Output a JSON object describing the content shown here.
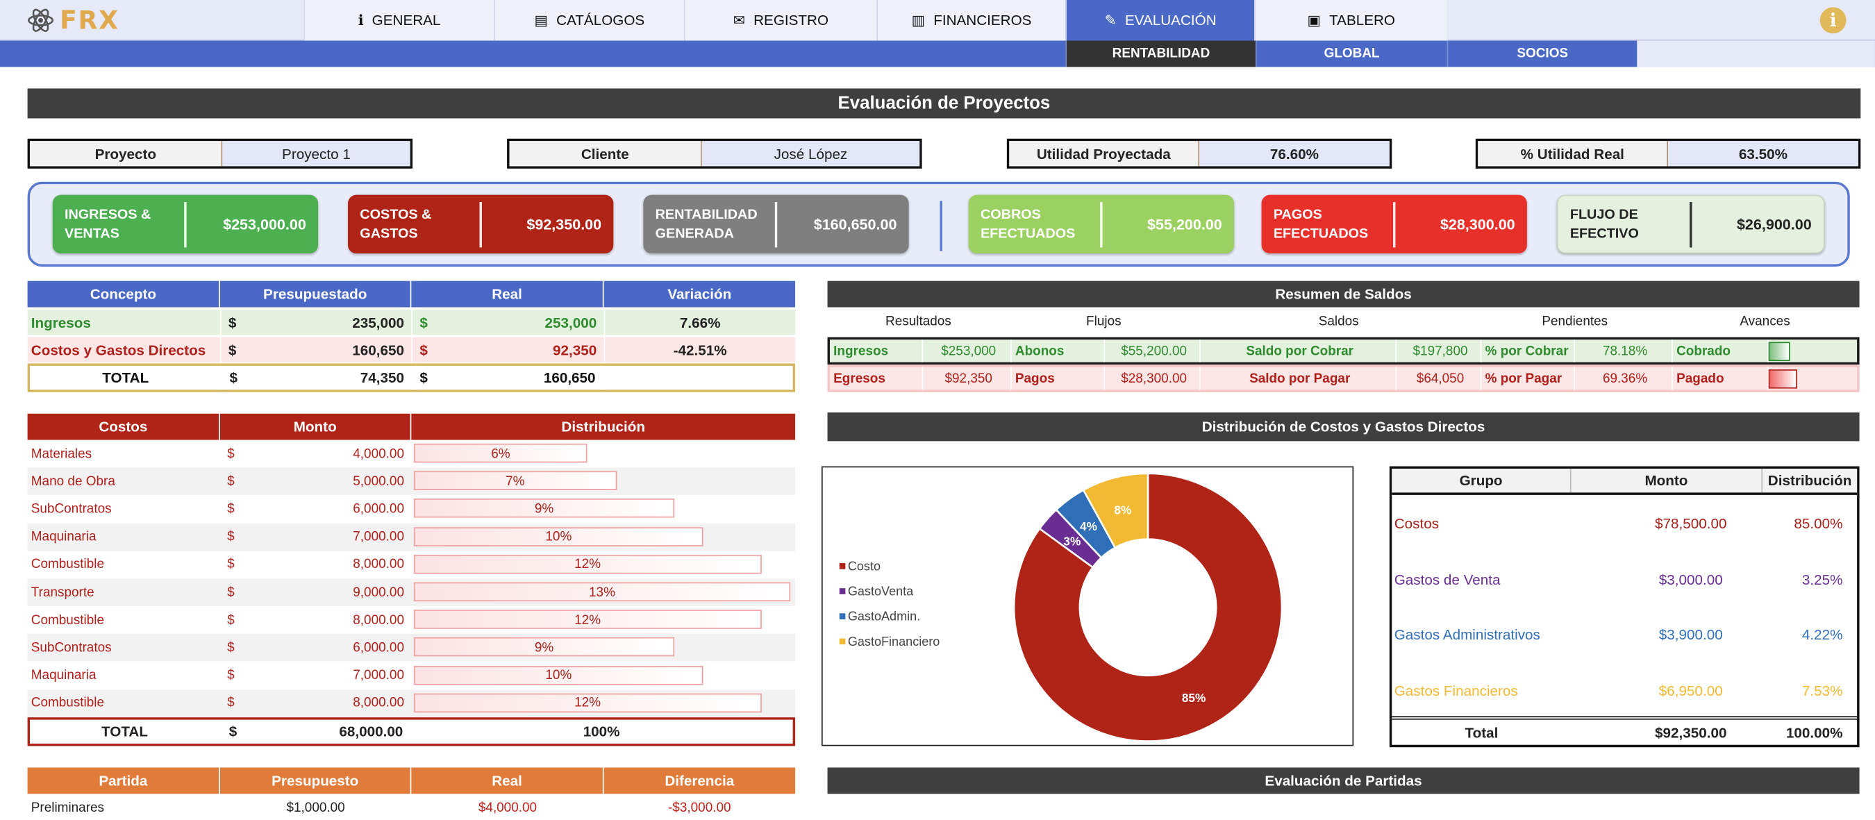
{
  "app": {
    "logo": "FRX"
  },
  "nav": {
    "tabs": [
      {
        "label": "GENERAL",
        "icon": "info-icon"
      },
      {
        "label": "CATÁLOGOS",
        "icon": "book-icon"
      },
      {
        "label": "REGISTRO",
        "icon": "folder-icon"
      },
      {
        "label": "FINANCIEROS",
        "icon": "bar-chart-icon"
      },
      {
        "label": "EVALUACIÓN",
        "icon": "chart-icon",
        "active": true
      },
      {
        "label": "TABLERO",
        "icon": "box-icon"
      }
    ],
    "subtabs": [
      {
        "label": "RENTABILIDAD",
        "active": true
      },
      {
        "label": "GLOBAL"
      },
      {
        "label": "SOCIOS"
      }
    ]
  },
  "title": "Evaluación de Proyectos",
  "params": {
    "proyecto_label": "Proyecto",
    "proyecto_value": "Proyecto 1",
    "cliente_label": "Cliente",
    "cliente_value": "José López",
    "utilidad_label": "Utilidad Proyectada",
    "utilidad_value": "76.60%",
    "real_label": "% Utilidad Real",
    "real_value": "63.50%"
  },
  "kpis": [
    {
      "label": "INGRESOS & VENTAS",
      "value": "$253,000.00",
      "color": "#4caf50"
    },
    {
      "label": "COSTOS & GASTOS",
      "value": "$92,350.00",
      "color": "#b02418"
    },
    {
      "label": "RENTABILIDAD GENERADA",
      "value": "$160,650.00",
      "color": "#7f7f7f"
    },
    {
      "label": "COBROS EFECTUADOS",
      "value": "$55,200.00",
      "color": "#9bd160"
    },
    {
      "label": "PAGOS EFECTUADOS",
      "value": "$28,300.00",
      "color": "#e8302a"
    },
    {
      "label": "FLUJO DE EFECTIVO",
      "value": "$26,900.00",
      "color": "#e6f0df"
    }
  ],
  "concepto": {
    "headers": [
      "Concepto",
      "Presupuestado",
      "Real",
      "Variación"
    ],
    "rows": [
      {
        "label": "Ingresos",
        "pres": "235,000",
        "real": "253,000",
        "var": "7.66%"
      },
      {
        "label": "Costos y Gastos Directos",
        "pres": "160,650",
        "real": "92,350",
        "var": "-42.51%"
      },
      {
        "label": "TOTAL",
        "pres": "74,350",
        "real": "160,650",
        "var": ""
      }
    ],
    "currency": "$"
  },
  "costos": {
    "headers": [
      "Costos",
      "Monto",
      "Distribución"
    ],
    "rows": [
      {
        "label": "Materiales",
        "monto": "4,000.00",
        "pct": "6%",
        "value": 6
      },
      {
        "label": "Mano de Obra",
        "monto": "5,000.00",
        "pct": "7%",
        "value": 7
      },
      {
        "label": "SubContratos",
        "monto": "6,000.00",
        "pct": "9%",
        "value": 9
      },
      {
        "label": "Maquinaria",
        "monto": "7,000.00",
        "pct": "10%",
        "value": 10
      },
      {
        "label": "Combustible",
        "monto": "8,000.00",
        "pct": "12%",
        "value": 12
      },
      {
        "label": "Transporte",
        "monto": "9,000.00",
        "pct": "13%",
        "value": 13
      },
      {
        "label": "Combustible",
        "monto": "8,000.00",
        "pct": "12%",
        "value": 12
      },
      {
        "label": "SubContratos",
        "monto": "6,000.00",
        "pct": "9%",
        "value": 9
      },
      {
        "label": "Maquinaria",
        "monto": "7,000.00",
        "pct": "10%",
        "value": 10
      },
      {
        "label": "Combustible",
        "monto": "8,000.00",
        "pct": "12%",
        "value": 12
      }
    ],
    "total_label": "TOTAL",
    "total_monto": "68,000.00",
    "total_pct": "100%",
    "currency": "$"
  },
  "partida": {
    "headers": [
      "Partida",
      "Presupuesto",
      "Real",
      "Diferencia"
    ],
    "row": {
      "label": "Preliminares",
      "pres": "$1,000.00",
      "real": "$4,000.00",
      "dif": "-$3,000.00"
    }
  },
  "resumen": {
    "title": "Resumen de Saldos",
    "headers": [
      "Resultados",
      "Flujos",
      "Saldos",
      "Pendientes",
      "Avances"
    ],
    "rows": [
      {
        "a": "Ingresos",
        "b": "$253,000",
        "c": "Abonos",
        "d": "$55,200.00",
        "e": "Saldo por Cobrar",
        "f": "$197,800",
        "g": "% por Cobrar",
        "h": "78.18%",
        "i": "Cobrado",
        "color": "#2e8b2e",
        "bg": "#e4f1de"
      },
      {
        "a": "Egresos",
        "b": "$92,350",
        "c": "Pagos",
        "d": "$28,300.00",
        "e": "Saldo por Pagar",
        "f": "$64,050",
        "g": "% por Pagar",
        "h": "69.36%",
        "i": "Pagado",
        "color": "#b0201a",
        "bg": "#fde6e6"
      }
    ]
  },
  "dist_title": "Distribución de Costos y Gastos Directos",
  "chart_data": {
    "type": "pie",
    "categories": [
      "Costo",
      "GastoVenta",
      "GastoAdmin.",
      "GastoFinanciero"
    ],
    "values": [
      85,
      3,
      4,
      8
    ],
    "labels": [
      "85%",
      "3%",
      "4%",
      "8%"
    ],
    "colors": [
      "#b02418",
      "#6a2d91",
      "#2f6fb8",
      "#f2b933"
    ],
    "legend": "left"
  },
  "grupo": {
    "headers": [
      "Grupo",
      "Monto",
      "Distribución"
    ],
    "rows": [
      {
        "label": "Costos",
        "monto": "$78,500.00",
        "pct": "85.00%",
        "color": "#a8201a"
      },
      {
        "label": "Gastos de Venta",
        "monto": "$3,000.00",
        "pct": "3.25%",
        "color": "#6a2d91"
      },
      {
        "label": "Gastos Administrativos",
        "monto": "$3,900.00",
        "pct": "4.22%",
        "color": "#2f6fb8"
      },
      {
        "label": "Gastos Financieros",
        "monto": "$6,950.00",
        "pct": "7.53%",
        "color": "#f2b933"
      }
    ],
    "total_label": "Total",
    "total_monto": "$92,350.00",
    "total_pct": "100.00%"
  },
  "partidas_title": "Evaluación de Partidas"
}
